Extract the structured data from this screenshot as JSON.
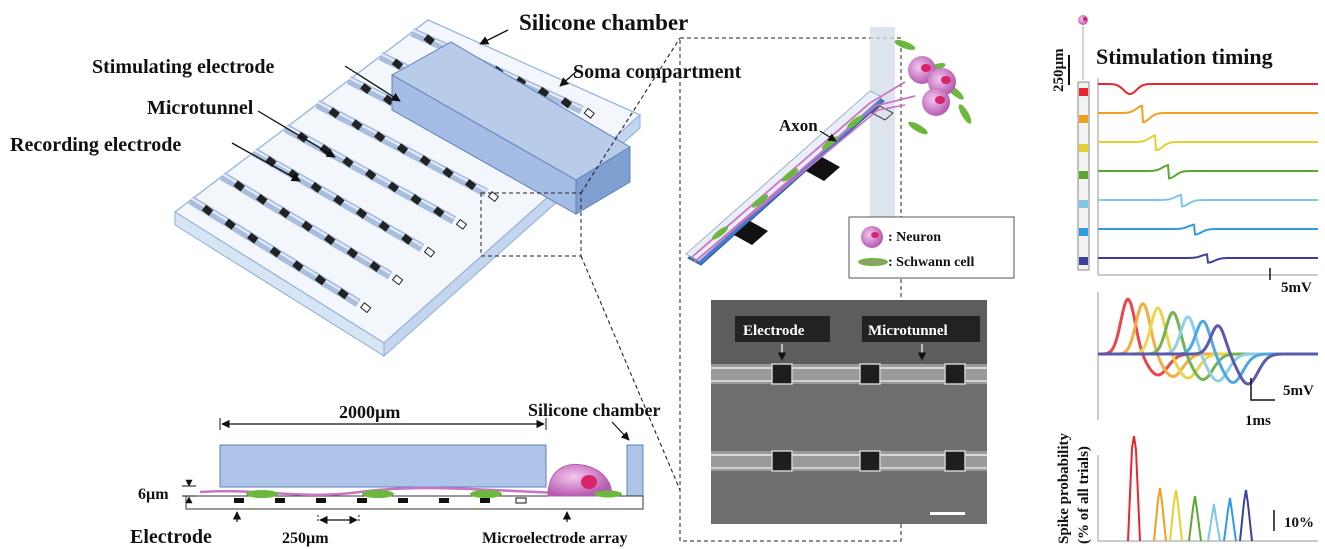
{
  "labels": {
    "silicone_chamber_top": "Silicone chamber",
    "stimulating_electrode": "Stimulating electrode",
    "soma_compartment": "Soma compartment",
    "microtunnel": "Microtunnel",
    "recording_electrode": "Recording electrode",
    "axon": "Axon",
    "neuron_legend": ": Neuron",
    "schwann_legend": ": Schwann cell",
    "sem_electrode": "Electrode",
    "sem_microtunnel": "Microtunnel",
    "width_2000": "2000µm",
    "silicone_chamber_side": "Silicone chamber",
    "height_6": "6µm",
    "electrode_bottom": "Electrode",
    "pitch_250": "250µm",
    "mea": "Microelectrode array",
    "scale_250": "250µm",
    "stim_timing": "Stimulation timing",
    "scale_5mv_a": "5mV",
    "scale_5mv_b": "5mV",
    "scale_1ms": "1ms",
    "spike_prob_line1": "Spike probability",
    "spike_prob_line2": "(% of all trials)",
    "scale_10pct": "10%"
  },
  "colors": {
    "chamber": "#a9c1e6",
    "trace_red": "#e8262d",
    "trace_orange": "#f0a020",
    "trace_yellow": "#e6cf30",
    "trace_green": "#5aa832",
    "trace_lightblue": "#7ec7e6",
    "trace_blue": "#2f9be0",
    "trace_navy": "#3d3f9e",
    "neuron": "#c874c2",
    "schwann": "#6cb83c"
  }
}
